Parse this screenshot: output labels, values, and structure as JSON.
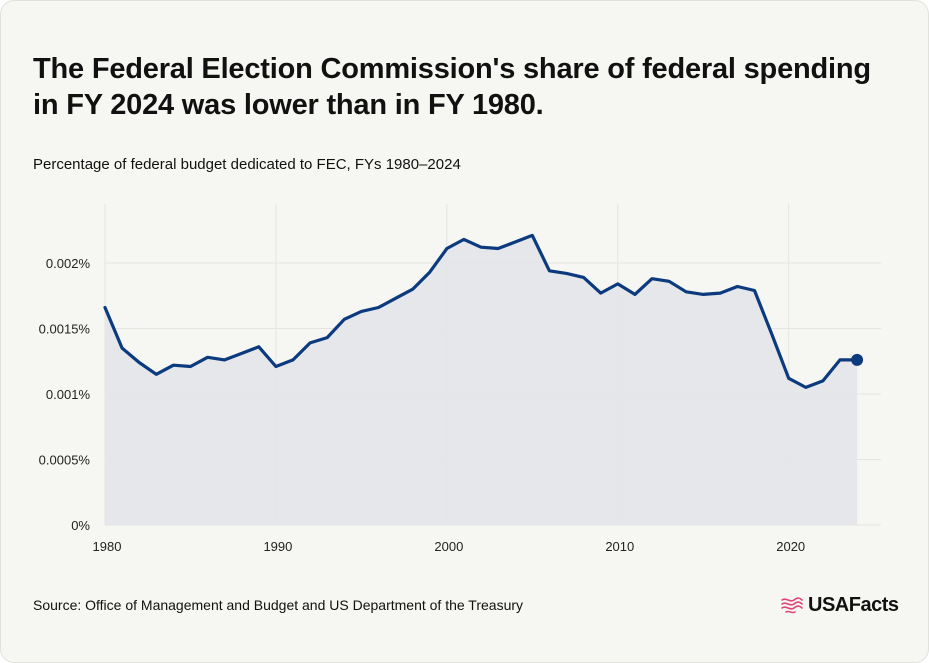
{
  "header": {
    "title": "The Federal Election Commission's share of federal spending in FY 2024 was lower than in FY 1980.",
    "subtitle": "Percentage of federal budget dedicated to FEC, FYs 1980–2024"
  },
  "footer": {
    "source": "Source: Office of Management and Budget and US Department of the Treasury",
    "logo_text": "USAFacts"
  },
  "colors": {
    "line": "#0b3a7e",
    "area": "#e3e6ea",
    "grid": "#e4e4e0",
    "logo_accent": "#e0457b"
  },
  "chart_data": {
    "type": "area",
    "title": "The Federal Election Commission's share of federal spending in FY 2024 was lower than in FY 1980.",
    "subtitle": "Percentage of federal budget dedicated to FEC, FYs 1980–2024",
    "xlabel": "",
    "ylabel": "",
    "x_ticks": [
      1980,
      1990,
      2000,
      2010,
      2020
    ],
    "y_ticks": [
      0,
      0.0005,
      0.001,
      0.0015,
      0.002
    ],
    "y_tick_labels": [
      "0%",
      "0.0005%",
      "0.001%",
      "0.0015%",
      "0.002%"
    ],
    "xlim": [
      1980,
      2025.4
    ],
    "ylim": [
      0,
      0.00245
    ],
    "grid": true,
    "highlight_last_point": true,
    "series": [
      {
        "name": "FEC share of federal budget (%)",
        "x": [
          1980,
          1981,
          1982,
          1983,
          1984,
          1985,
          1986,
          1987,
          1988,
          1989,
          1990,
          1991,
          1992,
          1993,
          1994,
          1995,
          1996,
          1997,
          1998,
          1999,
          2000,
          2001,
          2002,
          2003,
          2004,
          2005,
          2006,
          2007,
          2008,
          2009,
          2010,
          2011,
          2012,
          2013,
          2014,
          2015,
          2016,
          2017,
          2018,
          2019,
          2020,
          2021,
          2022,
          2023,
          2024
        ],
        "values": [
          0.00166,
          0.00135,
          0.00124,
          0.00115,
          0.00122,
          0.00121,
          0.00128,
          0.00126,
          0.00131,
          0.00136,
          0.00121,
          0.00126,
          0.00139,
          0.00143,
          0.00157,
          0.00163,
          0.00166,
          0.00173,
          0.0018,
          0.00193,
          0.00211,
          0.00218,
          0.00212,
          0.00211,
          0.00216,
          0.00221,
          0.00194,
          0.00192,
          0.00189,
          0.00177,
          0.00184,
          0.00176,
          0.00188,
          0.00186,
          0.00178,
          0.00176,
          0.00177,
          0.00182,
          0.00179,
          0.00146,
          0.00112,
          0.00105,
          0.0011,
          0.00126,
          0.00126
        ]
      }
    ]
  }
}
